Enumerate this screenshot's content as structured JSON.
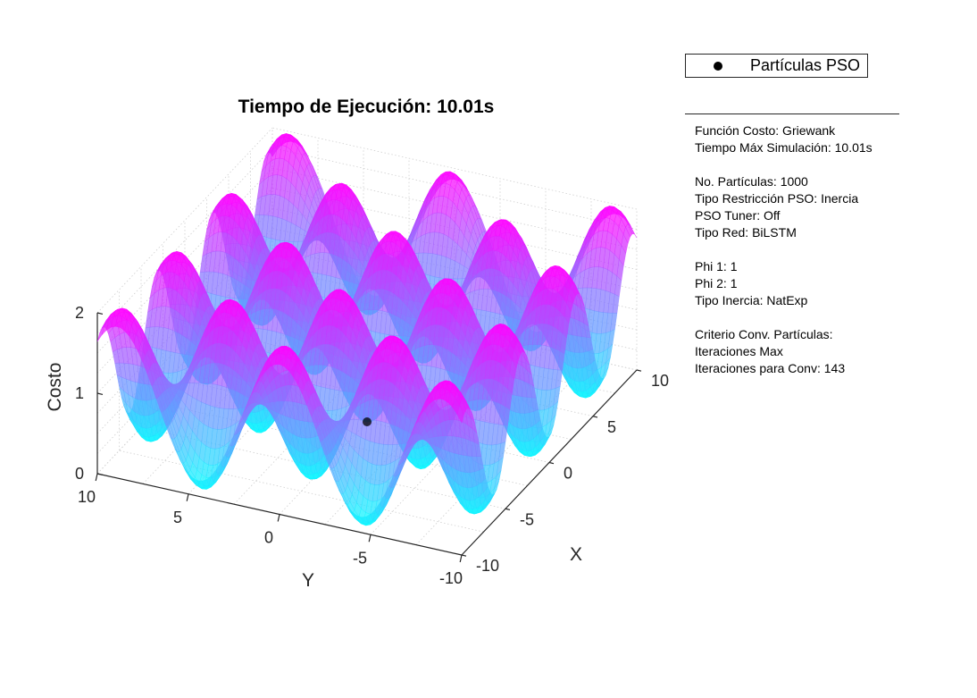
{
  "chart_data": {
    "type": "surface",
    "title": "Tiempo de Ejecución: 10.01s",
    "xlabel": "X",
    "ylabel": "Y",
    "zlabel": "Costo",
    "function": "Griewank",
    "xlim": [
      -10,
      10
    ],
    "ylim": [
      -10,
      10
    ],
    "zlim": [
      0,
      2
    ],
    "x_ticks": [
      "-10",
      "-5",
      "0",
      "5",
      "10"
    ],
    "y_ticks": [
      "-10",
      "-5",
      "0",
      "5",
      "10"
    ],
    "z_ticks": [
      "0",
      "1",
      "2"
    ],
    "colormap": [
      "#00ffff",
      "#ff00ff"
    ],
    "grid": true,
    "legend_placement": "top-right outside",
    "series": [
      {
        "name": "Partículas PSO",
        "marker": "filled-circle",
        "color": "#000000",
        "points": [
          {
            "x": 0,
            "y": 0,
            "z": 0
          }
        ]
      }
    ]
  },
  "legend": {
    "label": "Partículas PSO"
  },
  "info": {
    "lines": [
      "Función Costo: Griewank",
      "Tiempo Máx Simulación: 10.01s",
      "",
      "No. Partículas: 1000",
      "Tipo Restricción PSO: Inercia",
      "PSO Tuner: Off",
      "Tipo Red: BiLSTM",
      "",
      "Phi 1: 1",
      "Phi 2: 1",
      "Tipo Inercia: NatExp",
      "",
      "Criterio Conv. Partículas:",
      "Iteraciones Max",
      "Iteraciones para Conv: 143"
    ]
  }
}
